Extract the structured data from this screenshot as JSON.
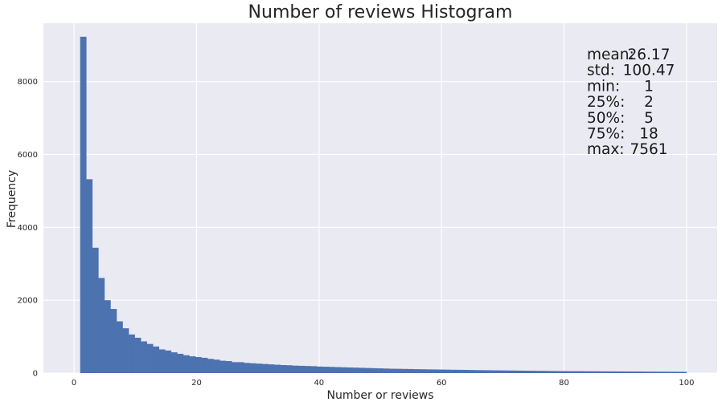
{
  "chart_data": {
    "type": "bar",
    "title": "Number of reviews Histogram",
    "xlabel": "Number or reviews",
    "ylabel": "Frequency",
    "xlim": [
      -5,
      105
    ],
    "ylim": [
      0,
      9600
    ],
    "x_ticks": [
      0,
      20,
      40,
      60,
      80,
      100
    ],
    "y_ticks": [
      0,
      2000,
      4000,
      6000,
      8000
    ],
    "bin_range": [
      1,
      100
    ],
    "bins": 100,
    "bar_color": "#4c72b0",
    "background_color": "#eaeaf2",
    "grid": true,
    "values": [
      9230,
      5320,
      3440,
      2610,
      2000,
      1760,
      1420,
      1230,
      1060,
      970,
      870,
      800,
      730,
      650,
      620,
      570,
      530,
      490,
      460,
      440,
      420,
      390,
      370,
      340,
      330,
      300,
      300,
      280,
      270,
      260,
      250,
      240,
      230,
      220,
      215,
      205,
      200,
      195,
      190,
      180,
      175,
      170,
      165,
      160,
      155,
      150,
      145,
      140,
      135,
      130,
      125,
      120,
      118,
      115,
      112,
      108,
      105,
      102,
      100,
      98,
      95,
      92,
      90,
      88,
      85,
      82,
      80,
      78,
      76,
      74,
      72,
      70,
      68,
      66,
      64,
      62,
      60,
      58,
      56,
      55,
      54,
      53,
      52,
      51,
      50,
      49,
      48,
      47,
      46,
      45,
      44,
      43,
      42,
      41,
      40,
      39,
      38,
      37,
      36,
      35
    ],
    "annotation": {
      "lines": [
        {
          "label": "mean:",
          "value": "26.17"
        },
        {
          "label": "std:",
          "value": "100.47"
        },
        {
          "label": "min:",
          "value": "1"
        },
        {
          "label": "25%:",
          "value": "2"
        },
        {
          "label": "50%:",
          "value": "5"
        },
        {
          "label": "75%:",
          "value": "18"
        },
        {
          "label": "max:",
          "value": "7561"
        }
      ]
    }
  }
}
